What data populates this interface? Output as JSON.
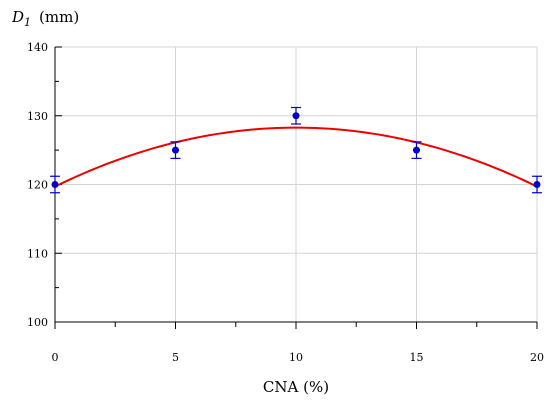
{
  "chart_data": {
    "type": "scatter",
    "ylabel_main": "D",
    "ylabel_sub": "1",
    "ylabel_unit": "(mm)",
    "xlabel": "CNA (%)",
    "xlim": [
      0,
      20
    ],
    "ylim": [
      100,
      140
    ],
    "x_ticks": [
      0,
      5,
      10,
      15,
      20
    ],
    "y_ticks": [
      100,
      110,
      120,
      130,
      140
    ],
    "grid": true,
    "series": [
      {
        "x": [
          0,
          5,
          10,
          15,
          20
        ],
        "y": [
          120,
          125,
          130,
          125,
          120
        ],
        "yerr": [
          1.2,
          1.2,
          1.2,
          1.2,
          1.2
        ],
        "color": "#0000cc"
      }
    ],
    "fit": {
      "type": "quadratic",
      "coefficients": [
        119.7,
        1.714,
        -0.0857
      ],
      "color": "#ee0000"
    }
  }
}
